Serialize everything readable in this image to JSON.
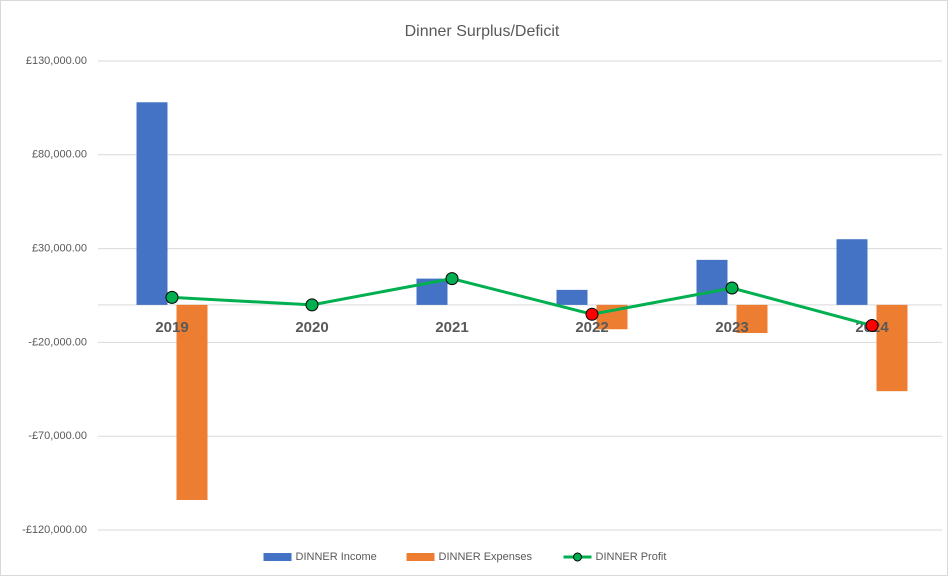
{
  "chart_data": {
    "type": "bar_line",
    "title": "Dinner Surplus/Deficit",
    "categories": [
      "2019",
      "2020",
      "2021",
      "2022",
      "2023",
      "2024"
    ],
    "series": [
      {
        "name": "DINNER Income",
        "type": "bar",
        "color": "#4472c4",
        "values": [
          108000,
          0,
          14000,
          8000,
          24000,
          35000
        ]
      },
      {
        "name": "DINNER Expenses",
        "type": "bar",
        "color": "#ed7d31",
        "values": [
          -104000,
          0,
          0,
          -13000,
          -15000,
          -46000
        ]
      },
      {
        "name": "DINNER Profit",
        "type": "line",
        "color": "#00b050",
        "values": [
          4000,
          0,
          14000,
          -5000,
          9000,
          -11000
        ],
        "marker_colors": [
          "#00b050",
          "#00b050",
          "#00b050",
          "#ff0000",
          "#00b050",
          "#ff0000"
        ]
      }
    ],
    "ylim": [
      -120000,
      130000
    ],
    "yticks": [
      {
        "value": -120000,
        "label": "-£120,000.00"
      },
      {
        "value": -70000,
        "label": "-£70,000.00"
      },
      {
        "value": -20000,
        "label": "-£20,000.00"
      },
      {
        "value": 30000,
        "label": "£30,000.00"
      },
      {
        "value": 80000,
        "label": "£80,000.00"
      },
      {
        "value": 130000,
        "label": "£130,000.00"
      }
    ],
    "grid": true,
    "legend": "bottom"
  }
}
